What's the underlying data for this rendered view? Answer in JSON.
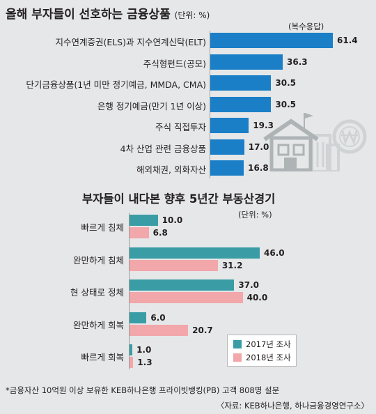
{
  "chart_data": [
    {
      "type": "bar",
      "orientation": "horizontal",
      "title": "올해 부자들이 선호하는 금융상품",
      "unit": "(단위: %)",
      "note": "(복수응답)",
      "categories": [
        "지수연계증권(ELS)과 지수연계신탁(ELT)",
        "주식형펀드(공모)",
        "단기금융상품(1년 미만 정기예금, MMDA, CMA)",
        "은행 정기예금(만기 1년 이상)",
        "주식 직접투자",
        "4차 산업 관련 금융상품",
        "해외채권, 외화자산"
      ],
      "values": [
        61.4,
        36.3,
        30.5,
        30.5,
        19.3,
        17.0,
        16.8
      ],
      "value_labels": [
        "61.4",
        "36.3",
        "30.5",
        "30.5",
        "19.3",
        "17.0",
        "16.8"
      ],
      "xlim": [
        0,
        64
      ],
      "color": "#1a7fc7"
    },
    {
      "type": "bar",
      "orientation": "horizontal",
      "title": "부자들이 내다본 향후 5년간 부동산경기",
      "unit": "(단위: %)",
      "categories": [
        "빠르게 침체",
        "완만하게 침체",
        "현 상태로 정체",
        "완만하게 회복",
        "빠르게 회복"
      ],
      "series": [
        {
          "name": "2017년 조사",
          "color": "#3a9da6",
          "values": [
            10.0,
            46.0,
            37.0,
            6.0,
            1.0
          ],
          "value_labels": [
            "10.0",
            "46.0",
            "37.0",
            "6.0",
            "1.0"
          ]
        },
        {
          "name": "2018년 조사",
          "color": "#f2a7aa",
          "values": [
            6.8,
            31.2,
            40.0,
            20.7,
            1.3
          ],
          "value_labels": [
            "6.8",
            "31.2",
            "40.0",
            "20.7",
            "1.3"
          ]
        }
      ],
      "xlim": [
        0,
        50
      ],
      "legend": "bottom-right"
    }
  ],
  "footer": {
    "note": "*금융자산 10억원 이상 보유한 KEB하나은행 프라이빗뱅킹(PB) 고객 808명 설문",
    "source": "〈자료: KEB하나은행, 하나금융경영연구소〉"
  },
  "illustration": {
    "icon": "house-and-buildings-icon",
    "won_icon": "won-coin-icon"
  }
}
